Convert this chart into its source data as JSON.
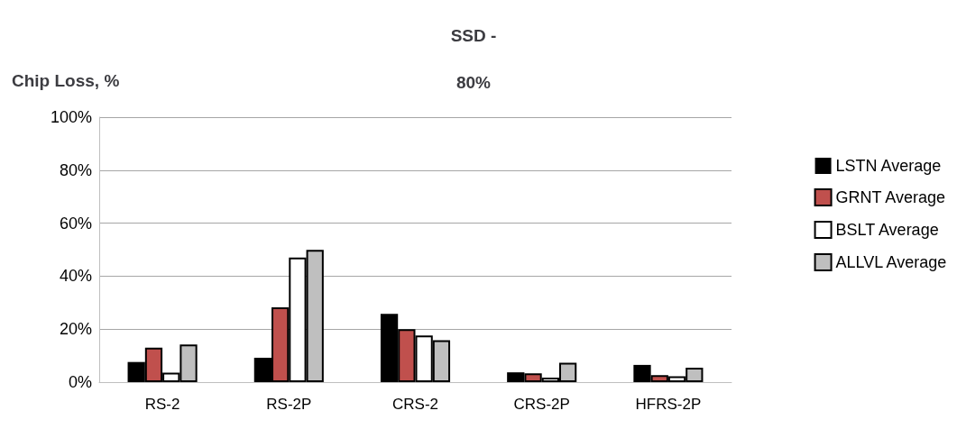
{
  "chart_data": {
    "type": "bar",
    "title": "SSD -\n80%",
    "ylabel": "Chip Loss, %",
    "categories": [
      "RS-2",
      "RS-2P",
      "CRS-2",
      "CRS-2P",
      "HFRS-2P"
    ],
    "series": [
      {
        "name": "LSTN Average",
        "color": "#000000",
        "values": [
          7.6,
          9.2,
          25.8,
          3.7,
          6.5
        ]
      },
      {
        "name": "GRNT Average",
        "color": "#c0504d",
        "values": [
          13,
          28.2,
          20,
          3.3,
          2.6
        ]
      },
      {
        "name": "BSLT Average",
        "color": "#ffffff",
        "values": [
          3.6,
          47,
          17.6,
          1.7,
          2.2
        ]
      },
      {
        "name": "ALLVL Average",
        "color": "#bfbfbf",
        "values": [
          14.2,
          49.9,
          15.8,
          7.3,
          5.4
        ]
      }
    ],
    "ylim": [
      0,
      100
    ],
    "yticks": [
      {
        "value": 0,
        "label": "0%"
      },
      {
        "value": 20,
        "label": "20%"
      },
      {
        "value": 40,
        "label": "40%"
      },
      {
        "value": 60,
        "label": "60%"
      },
      {
        "value": 80,
        "label": "80%"
      },
      {
        "value": 100,
        "label": "100%"
      }
    ],
    "grid": "y",
    "legend": "right"
  }
}
